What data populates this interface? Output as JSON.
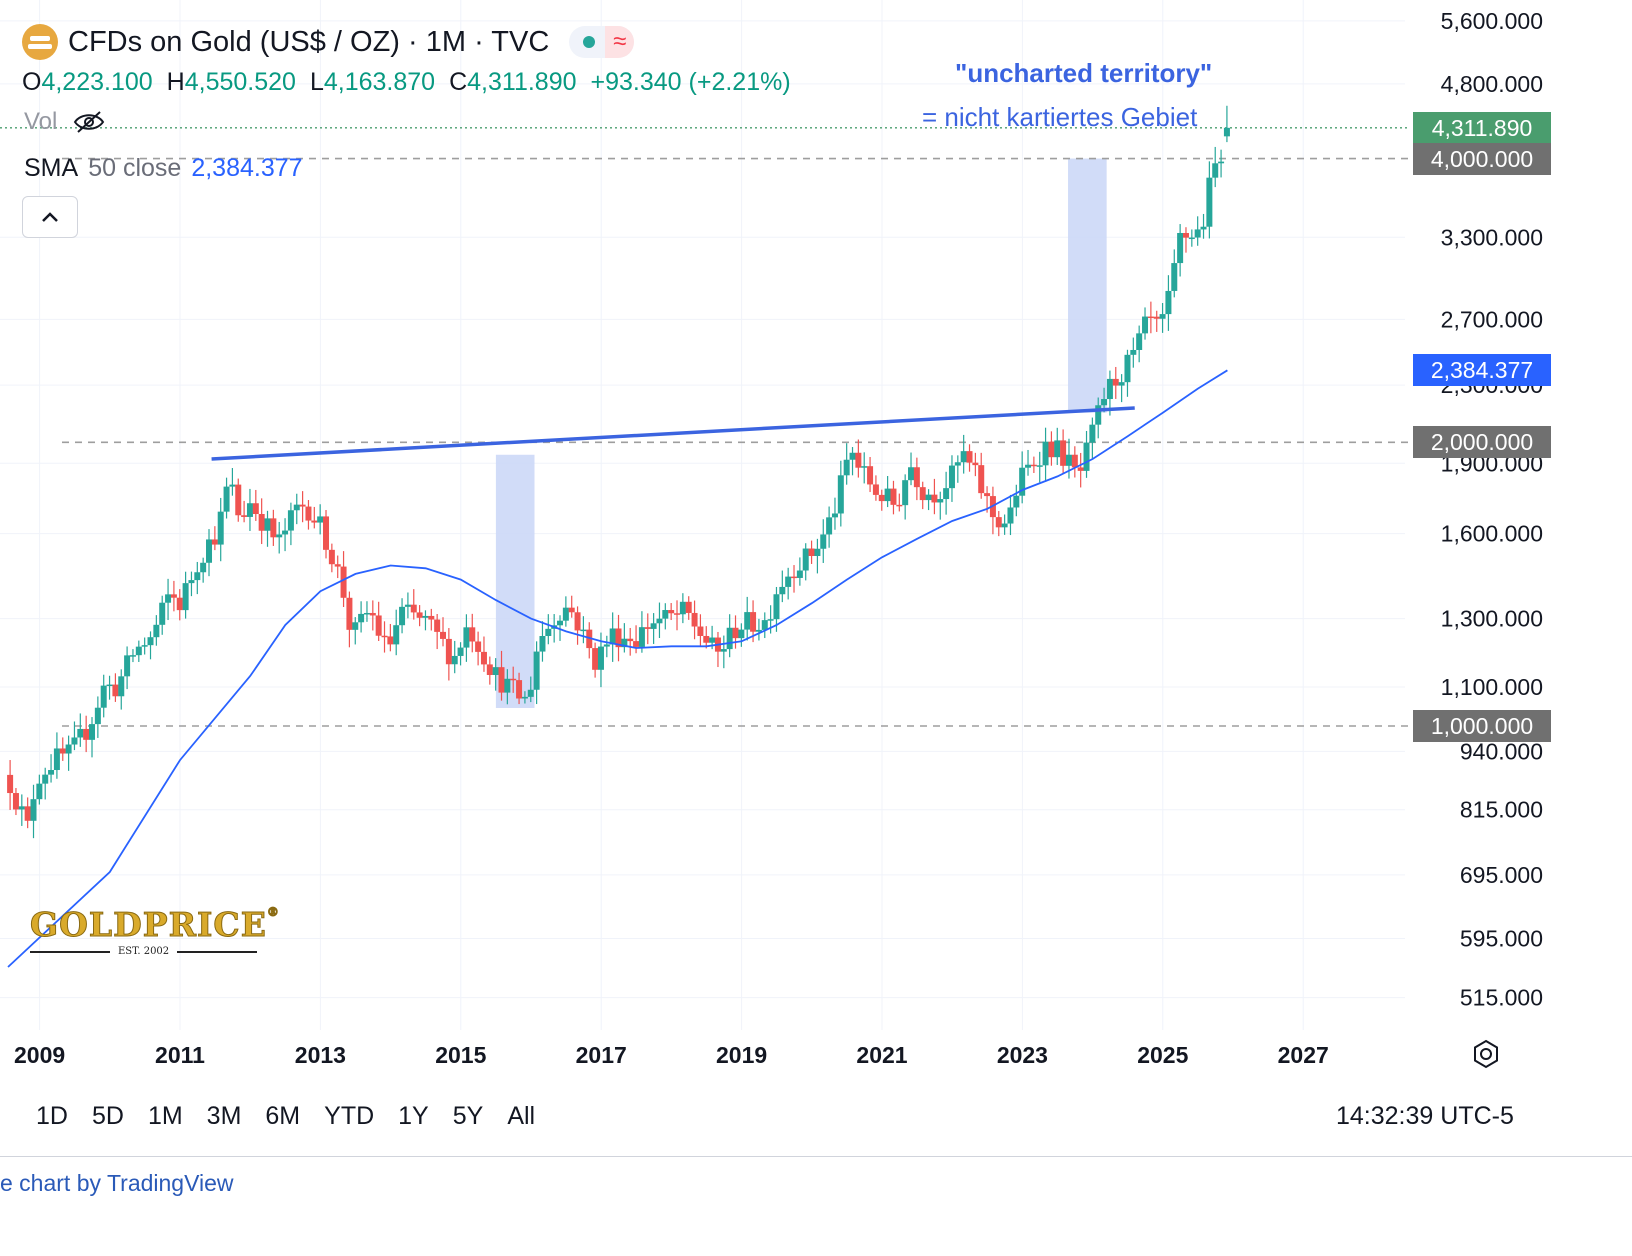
{
  "header": {
    "title": "CFDs on Gold (US$ / OZ) · 1M · TVC",
    "status_glyph": "≈",
    "ohlc": {
      "o_label": "O",
      "o_value": "4,223.100",
      "h_label": "H",
      "h_value": "4,550.520",
      "l_label": "L",
      "l_value": "4,163.870",
      "c_label": "C",
      "c_value": "4,311.890",
      "change": "+93.340 (+2.21%)"
    },
    "vol_label": "Vol",
    "sma": {
      "name": "SMA",
      "param": "50 close",
      "value": "2,384.377"
    }
  },
  "annotations": {
    "line1": "\"uncharted territory\"",
    "line2": "= nicht kartiertes Gebiet"
  },
  "price_tags": [
    {
      "label": "4,311.890",
      "value": 4311.89,
      "color": "#4a9d6e"
    },
    {
      "label": "4,000.000",
      "value": 4000,
      "color": "#707070"
    },
    {
      "label": "2,384.377",
      "value": 2384.377,
      "color": "#2962ff"
    },
    {
      "label": "2,000.000",
      "value": 2000,
      "color": "#707070"
    },
    {
      "label": "1,000.000",
      "value": 1000,
      "color": "#707070"
    }
  ],
  "range_buttons": [
    "1D",
    "5D",
    "1M",
    "3M",
    "6M",
    "YTD",
    "1Y",
    "5Y",
    "All"
  ],
  "clock": "14:32:39 UTC-5",
  "footer_credit": "e chart by TradingView",
  "logo": {
    "name": "GOLDPRICE",
    "reg": "®",
    "est": "EST. 2002"
  },
  "colors": {
    "up": "#26a69a",
    "down": "#ef5350",
    "sma": "#2962ff",
    "trendline": "#3b64e0",
    "highlight": "#c9d6f7"
  },
  "chart_data": {
    "type": "candlestick",
    "timeframe": "1M",
    "y_scale": "log",
    "y_ticks": [
      515,
      595,
      695,
      815,
      940,
      1100,
      1300,
      1600,
      1900,
      2300,
      2700,
      3300,
      4800,
      5600
    ],
    "y_tick_labels": [
      "515.000",
      "595.000",
      "695.000",
      "815.000",
      "940.000",
      "1,100.000",
      "1,300.000",
      "1,600.000",
      "1,900.000",
      "2,300.000",
      "2,700.000",
      "3,300.000",
      "4,800.000",
      "5,600.000"
    ],
    "x_ticks": [
      2009,
      2011,
      2013,
      2015,
      2017,
      2019,
      2021,
      2023,
      2025,
      2027
    ],
    "x_tick_labels": [
      "2009",
      "2011",
      "2013",
      "2015",
      "2017",
      "2019",
      "2021",
      "2023",
      "2025",
      "2027"
    ],
    "x_range": [
      2008.55,
      2028.45
    ],
    "y_range": [
      490,
      5750
    ],
    "close_anchors": [
      [
        2008.58,
        870
      ],
      [
        2008.83,
        780
      ],
      [
        2008.95,
        880
      ],
      [
        2009.2,
        920
      ],
      [
        2009.45,
        935
      ],
      [
        2009.7,
        1000
      ],
      [
        2009.92,
        1100
      ],
      [
        2010.1,
        1100
      ],
      [
        2010.35,
        1200
      ],
      [
        2010.6,
        1240
      ],
      [
        2010.85,
        1380
      ],
      [
        2011.0,
        1350
      ],
      [
        2011.3,
        1520
      ],
      [
        2011.55,
        1620
      ],
      [
        2011.7,
        1830
      ],
      [
        2011.85,
        1660
      ],
      [
        2012.0,
        1730
      ],
      [
        2012.4,
        1560
      ],
      [
        2012.7,
        1720
      ],
      [
        2012.85,
        1700
      ],
      [
        2013.05,
        1600
      ],
      [
        2013.3,
        1420
      ],
      [
        2013.45,
        1240
      ],
      [
        2013.7,
        1330
      ],
      [
        2013.95,
        1200
      ],
      [
        2014.15,
        1320
      ],
      [
        2014.5,
        1290
      ],
      [
        2014.9,
        1180
      ],
      [
        2015.1,
        1280
      ],
      [
        2015.5,
        1130
      ],
      [
        2015.8,
        1080
      ],
      [
        2015.95,
        1060
      ],
      [
        2016.1,
        1230
      ],
      [
        2016.45,
        1340
      ],
      [
        2016.6,
        1320
      ],
      [
        2016.9,
        1170
      ],
      [
        2017.15,
        1250
      ],
      [
        2017.5,
        1240
      ],
      [
        2017.7,
        1290
      ],
      [
        2017.95,
        1300
      ],
      [
        2018.2,
        1320
      ],
      [
        2018.5,
        1230
      ],
      [
        2018.65,
        1190
      ],
      [
        2018.95,
        1280
      ],
      [
        2019.35,
        1290
      ],
      [
        2019.5,
        1400
      ],
      [
        2019.75,
        1480
      ],
      [
        2019.95,
        1510
      ],
      [
        2020.15,
        1580
      ],
      [
        2020.35,
        1720
      ],
      [
        2020.55,
        1970
      ],
      [
        2020.65,
        1890
      ],
      [
        2020.9,
        1780
      ],
      [
        2021.2,
        1710
      ],
      [
        2021.4,
        1900
      ],
      [
        2021.6,
        1770
      ],
      [
        2021.8,
        1770
      ],
      [
        2022.0,
        1840
      ],
      [
        2022.15,
        1940
      ],
      [
        2022.35,
        1830
      ],
      [
        2022.6,
        1660
      ],
      [
        2022.8,
        1640
      ],
      [
        2022.95,
        1820
      ],
      [
        2023.2,
        1930
      ],
      [
        2023.35,
        1990
      ],
      [
        2023.55,
        1950
      ],
      [
        2023.8,
        1830
      ],
      [
        2024.0,
        2040
      ],
      [
        2024.15,
        2230
      ],
      [
        2024.3,
        2320
      ],
      [
        2024.55,
        2440
      ],
      [
        2024.8,
        2700
      ],
      [
        2024.95,
        2620
      ],
      [
        2025.1,
        2850
      ],
      [
        2025.25,
        3300
      ],
      [
        2025.55,
        3350
      ],
      [
        2025.7,
        3850
      ],
      [
        2025.8,
        4020
      ],
      [
        2025.92,
        4311.89
      ]
    ],
    "last_candle": {
      "open": 4223.1,
      "high": 4550.52,
      "low": 4163.87,
      "close": 4311.89
    },
    "sma": {
      "name": "SMA 50 close",
      "last_value": 2384.377,
      "points": [
        [
          2008.55,
          555
        ],
        [
          2010.0,
          700
        ],
        [
          2011.0,
          920
        ],
        [
          2012.0,
          1130
        ],
        [
          2012.5,
          1280
        ],
        [
          2013.0,
          1390
        ],
        [
          2013.5,
          1450
        ],
        [
          2014.0,
          1480
        ],
        [
          2014.5,
          1470
        ],
        [
          2015.0,
          1430
        ],
        [
          2015.5,
          1360
        ],
        [
          2016.0,
          1300
        ],
        [
          2016.5,
          1260
        ],
        [
          2017.0,
          1230
        ],
        [
          2017.5,
          1210
        ],
        [
          2018.0,
          1215
        ],
        [
          2018.5,
          1215
        ],
        [
          2019.0,
          1230
        ],
        [
          2019.5,
          1280
        ],
        [
          2020.0,
          1350
        ],
        [
          2020.5,
          1430
        ],
        [
          2021.0,
          1510
        ],
        [
          2021.5,
          1580
        ],
        [
          2022.0,
          1650
        ],
        [
          2022.5,
          1700
        ],
        [
          2023.0,
          1780
        ],
        [
          2023.5,
          1840
        ],
        [
          2024.0,
          1920
        ],
        [
          2024.5,
          2030
        ],
        [
          2025.0,
          2150
        ],
        [
          2025.5,
          2280
        ],
        [
          2025.92,
          2384.377
        ]
      ]
    },
    "trendline": [
      [
        2011.45,
        1920
      ],
      [
        2024.6,
        2175
      ]
    ],
    "highlight_zones": [
      {
        "from": 2015.5,
        "to": 2016.05,
        "low": 1045,
        "high": 1940
      },
      {
        "from": 2023.65,
        "to": 2024.2,
        "low": 2150,
        "high": 4000
      }
    ],
    "reference_levels": [
      1000,
      2000,
      4000
    ],
    "last_price_line": 4311.89
  }
}
